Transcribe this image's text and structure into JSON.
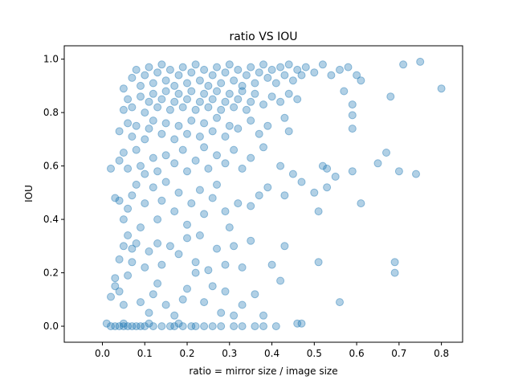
{
  "chart_data": {
    "type": "scatter",
    "title": "ratio VS IOU",
    "xlabel": "ratio = mirror size / image size",
    "ylabel": "IOU",
    "xlim": [
      -0.09,
      0.85
    ],
    "ylim": [
      -0.06,
      1.05
    ],
    "xticks": [
      "0.0",
      "0.1",
      "0.2",
      "0.3",
      "0.4",
      "0.5",
      "0.6",
      "0.7",
      "0.8"
    ],
    "yticks": [
      "0.0",
      "0.2",
      "0.4",
      "0.6",
      "0.8",
      "1.0"
    ],
    "grid": false,
    "legend": "none",
    "series": [
      {
        "color": "#1f77b4",
        "alpha": 0.35,
        "points": [
          [
            0.02,
            0.0
          ],
          [
            0.03,
            0.0
          ],
          [
            0.04,
            0.0
          ],
          [
            0.05,
            0.0
          ],
          [
            0.06,
            0.0
          ],
          [
            0.07,
            0.0
          ],
          [
            0.08,
            0.0
          ],
          [
            0.09,
            0.0
          ],
          [
            0.1,
            0.0
          ],
          [
            0.12,
            0.0
          ],
          [
            0.14,
            0.0
          ],
          [
            0.16,
            0.0
          ],
          [
            0.17,
            0.0
          ],
          [
            0.19,
            0.0
          ],
          [
            0.21,
            0.0
          ],
          [
            0.22,
            0.0
          ],
          [
            0.24,
            0.0
          ],
          [
            0.26,
            0.0
          ],
          [
            0.28,
            0.0
          ],
          [
            0.31,
            0.0
          ],
          [
            0.33,
            0.0
          ],
          [
            0.36,
            0.0
          ],
          [
            0.38,
            0.0
          ],
          [
            0.41,
            0.0
          ],
          [
            0.46,
            0.01
          ],
          [
            0.47,
            0.01
          ],
          [
            0.01,
            0.01
          ],
          [
            0.05,
            0.01
          ],
          [
            0.11,
            0.01
          ],
          [
            0.18,
            0.01
          ],
          [
            0.02,
            0.11
          ],
          [
            0.03,
            0.15
          ],
          [
            0.03,
            0.18
          ],
          [
            0.04,
            0.13
          ],
          [
            0.05,
            0.08
          ],
          [
            0.06,
            0.19
          ],
          [
            0.07,
            0.24
          ],
          [
            0.09,
            0.09
          ],
          [
            0.11,
            0.05
          ],
          [
            0.12,
            0.12
          ],
          [
            0.13,
            0.16
          ],
          [
            0.15,
            0.08
          ],
          [
            0.17,
            0.04
          ],
          [
            0.19,
            0.1
          ],
          [
            0.2,
            0.14
          ],
          [
            0.22,
            0.2
          ],
          [
            0.24,
            0.09
          ],
          [
            0.26,
            0.15
          ],
          [
            0.28,
            0.05
          ],
          [
            0.29,
            0.13
          ],
          [
            0.31,
            0.04
          ],
          [
            0.33,
            0.08
          ],
          [
            0.36,
            0.12
          ],
          [
            0.38,
            0.04
          ],
          [
            0.42,
            0.17
          ],
          [
            0.56,
            0.09
          ],
          [
            0.04,
            0.25
          ],
          [
            0.05,
            0.3
          ],
          [
            0.06,
            0.34
          ],
          [
            0.07,
            0.29
          ],
          [
            0.08,
            0.31
          ],
          [
            0.1,
            0.22
          ],
          [
            0.11,
            0.28
          ],
          [
            0.13,
            0.31
          ],
          [
            0.14,
            0.23
          ],
          [
            0.16,
            0.3
          ],
          [
            0.18,
            0.27
          ],
          [
            0.2,
            0.33
          ],
          [
            0.22,
            0.24
          ],
          [
            0.23,
            0.34
          ],
          [
            0.25,
            0.21
          ],
          [
            0.27,
            0.29
          ],
          [
            0.29,
            0.23
          ],
          [
            0.31,
            0.3
          ],
          [
            0.33,
            0.22
          ],
          [
            0.35,
            0.32
          ],
          [
            0.4,
            0.23
          ],
          [
            0.43,
            0.3
          ],
          [
            0.51,
            0.24
          ],
          [
            0.69,
            0.24
          ],
          [
            0.69,
            0.2
          ],
          [
            0.03,
            0.48
          ],
          [
            0.04,
            0.47
          ],
          [
            0.05,
            0.4
          ],
          [
            0.06,
            0.44
          ],
          [
            0.07,
            0.49
          ],
          [
            0.08,
            0.53
          ],
          [
            0.09,
            0.37
          ],
          [
            0.1,
            0.46
          ],
          [
            0.12,
            0.52
          ],
          [
            0.13,
            0.4
          ],
          [
            0.14,
            0.47
          ],
          [
            0.15,
            0.54
          ],
          [
            0.17,
            0.43
          ],
          [
            0.18,
            0.5
          ],
          [
            0.2,
            0.38
          ],
          [
            0.21,
            0.46
          ],
          [
            0.23,
            0.51
          ],
          [
            0.24,
            0.42
          ],
          [
            0.26,
            0.48
          ],
          [
            0.27,
            0.53
          ],
          [
            0.29,
            0.43
          ],
          [
            0.3,
            0.37
          ],
          [
            0.32,
            0.46
          ],
          [
            0.35,
            0.45
          ],
          [
            0.37,
            0.49
          ],
          [
            0.39,
            0.52
          ],
          [
            0.43,
            0.49
          ],
          [
            0.47,
            0.54
          ],
          [
            0.5,
            0.5
          ],
          [
            0.51,
            0.43
          ],
          [
            0.53,
            0.52
          ],
          [
            0.61,
            0.46
          ],
          [
            0.02,
            0.59
          ],
          [
            0.04,
            0.62
          ],
          [
            0.05,
            0.65
          ],
          [
            0.06,
            0.59
          ],
          [
            0.08,
            0.66
          ],
          [
            0.09,
            0.6
          ],
          [
            0.1,
            0.57
          ],
          [
            0.12,
            0.63
          ],
          [
            0.13,
            0.58
          ],
          [
            0.15,
            0.64
          ],
          [
            0.17,
            0.61
          ],
          [
            0.19,
            0.66
          ],
          [
            0.2,
            0.58
          ],
          [
            0.22,
            0.62
          ],
          [
            0.24,
            0.67
          ],
          [
            0.25,
            0.59
          ],
          [
            0.27,
            0.64
          ],
          [
            0.29,
            0.61
          ],
          [
            0.31,
            0.66
          ],
          [
            0.33,
            0.59
          ],
          [
            0.35,
            0.63
          ],
          [
            0.38,
            0.67
          ],
          [
            0.42,
            0.6
          ],
          [
            0.45,
            0.57
          ],
          [
            0.52,
            0.6
          ],
          [
            0.53,
            0.59
          ],
          [
            0.55,
            0.56
          ],
          [
            0.59,
            0.58
          ],
          [
            0.65,
            0.61
          ],
          [
            0.67,
            0.65
          ],
          [
            0.7,
            0.58
          ],
          [
            0.74,
            0.57
          ],
          [
            0.04,
            0.73
          ],
          [
            0.06,
            0.76
          ],
          [
            0.07,
            0.71
          ],
          [
            0.08,
            0.75
          ],
          [
            0.1,
            0.7
          ],
          [
            0.11,
            0.74
          ],
          [
            0.12,
            0.77
          ],
          [
            0.14,
            0.72
          ],
          [
            0.15,
            0.76
          ],
          [
            0.17,
            0.7
          ],
          [
            0.18,
            0.75
          ],
          [
            0.2,
            0.72
          ],
          [
            0.21,
            0.77
          ],
          [
            0.23,
            0.71
          ],
          [
            0.24,
            0.76
          ],
          [
            0.26,
            0.73
          ],
          [
            0.27,
            0.78
          ],
          [
            0.29,
            0.71
          ],
          [
            0.3,
            0.75
          ],
          [
            0.32,
            0.74
          ],
          [
            0.35,
            0.77
          ],
          [
            0.37,
            0.72
          ],
          [
            0.39,
            0.75
          ],
          [
            0.43,
            0.78
          ],
          [
            0.44,
            0.73
          ],
          [
            0.59,
            0.79
          ],
          [
            0.59,
            0.74
          ],
          [
            0.05,
            0.81
          ],
          [
            0.06,
            0.85
          ],
          [
            0.07,
            0.82
          ],
          [
            0.09,
            0.86
          ],
          [
            0.1,
            0.8
          ],
          [
            0.11,
            0.84
          ],
          [
            0.12,
            0.87
          ],
          [
            0.13,
            0.82
          ],
          [
            0.14,
            0.85
          ],
          [
            0.15,
            0.88
          ],
          [
            0.16,
            0.81
          ],
          [
            0.17,
            0.84
          ],
          [
            0.18,
            0.87
          ],
          [
            0.19,
            0.82
          ],
          [
            0.2,
            0.85
          ],
          [
            0.21,
            0.88
          ],
          [
            0.22,
            0.81
          ],
          [
            0.23,
            0.84
          ],
          [
            0.24,
            0.87
          ],
          [
            0.25,
            0.82
          ],
          [
            0.26,
            0.85
          ],
          [
            0.27,
            0.88
          ],
          [
            0.28,
            0.81
          ],
          [
            0.29,
            0.84
          ],
          [
            0.3,
            0.87
          ],
          [
            0.31,
            0.82
          ],
          [
            0.32,
            0.85
          ],
          [
            0.33,
            0.88
          ],
          [
            0.34,
            0.81
          ],
          [
            0.35,
            0.84
          ],
          [
            0.36,
            0.87
          ],
          [
            0.38,
            0.83
          ],
          [
            0.4,
            0.86
          ],
          [
            0.42,
            0.84
          ],
          [
            0.44,
            0.87
          ],
          [
            0.46,
            0.85
          ],
          [
            0.57,
            0.88
          ],
          [
            0.59,
            0.83
          ],
          [
            0.68,
            0.86
          ],
          [
            0.8,
            0.89
          ],
          [
            0.05,
            0.89
          ],
          [
            0.07,
            0.93
          ],
          [
            0.08,
            0.96
          ],
          [
            0.09,
            0.9
          ],
          [
            0.1,
            0.94
          ],
          [
            0.11,
            0.97
          ],
          [
            0.12,
            0.91
          ],
          [
            0.13,
            0.95
          ],
          [
            0.14,
            0.98
          ],
          [
            0.15,
            0.92
          ],
          [
            0.16,
            0.96
          ],
          [
            0.17,
            0.9
          ],
          [
            0.18,
            0.94
          ],
          [
            0.19,
            0.97
          ],
          [
            0.2,
            0.91
          ],
          [
            0.21,
            0.95
          ],
          [
            0.22,
            0.98
          ],
          [
            0.23,
            0.92
          ],
          [
            0.24,
            0.96
          ],
          [
            0.25,
            0.9
          ],
          [
            0.26,
            0.94
          ],
          [
            0.27,
            0.97
          ],
          [
            0.28,
            0.91
          ],
          [
            0.29,
            0.95
          ],
          [
            0.3,
            0.98
          ],
          [
            0.31,
            0.92
          ],
          [
            0.32,
            0.96
          ],
          [
            0.33,
            0.9
          ],
          [
            0.34,
            0.94
          ],
          [
            0.35,
            0.97
          ],
          [
            0.36,
            0.91
          ],
          [
            0.37,
            0.95
          ],
          [
            0.38,
            0.98
          ],
          [
            0.39,
            0.93
          ],
          [
            0.4,
            0.96
          ],
          [
            0.41,
            0.91
          ],
          [
            0.42,
            0.97
          ],
          [
            0.43,
            0.94
          ],
          [
            0.44,
            0.98
          ],
          [
            0.45,
            0.92
          ],
          [
            0.46,
            0.96
          ],
          [
            0.47,
            0.94
          ],
          [
            0.48,
            0.97
          ],
          [
            0.5,
            0.95
          ],
          [
            0.52,
            0.98
          ],
          [
            0.54,
            0.94
          ],
          [
            0.56,
            0.96
          ],
          [
            0.58,
            0.97
          ],
          [
            0.6,
            0.94
          ],
          [
            0.61,
            0.92
          ],
          [
            0.71,
            0.98
          ],
          [
            0.75,
            0.99
          ]
        ]
      }
    ]
  }
}
